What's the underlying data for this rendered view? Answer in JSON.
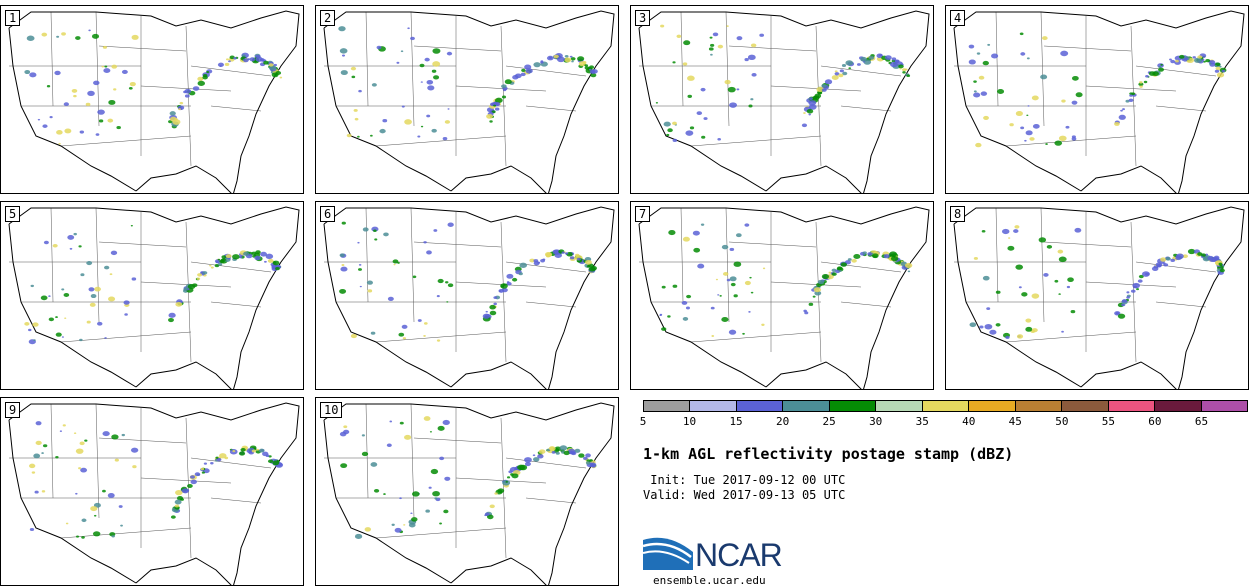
{
  "panels": [
    {
      "label": "1"
    },
    {
      "label": "2"
    },
    {
      "label": "3"
    },
    {
      "label": "4"
    },
    {
      "label": "5"
    },
    {
      "label": "6"
    },
    {
      "label": "7"
    },
    {
      "label": "8"
    },
    {
      "label": "9"
    },
    {
      "label": "10"
    }
  ],
  "colorbar": {
    "colors": [
      "#9e9e9e",
      "#b3b8e8",
      "#5b62d6",
      "#4c8e97",
      "#058c05",
      "#b7d9b5",
      "#e4d85f",
      "#e8ab23",
      "#b97f33",
      "#8b5a3c",
      "#eb5480",
      "#6a1a3c",
      "#ad4fa8"
    ],
    "ticks": [
      "5",
      "10",
      "15",
      "20",
      "25",
      "30",
      "35",
      "40",
      "45",
      "50",
      "55",
      "60",
      "65"
    ]
  },
  "title": "1-km AGL reflectivity postage stamp (dBZ)",
  "init": " Init: Tue 2017-09-12 00 UTC",
  "valid": "Valid: Wed 2017-09-13 05 UTC",
  "logo": {
    "text": "NCAR",
    "color": "#1a3a6e"
  },
  "site": "ensemble.ucar.edu"
}
